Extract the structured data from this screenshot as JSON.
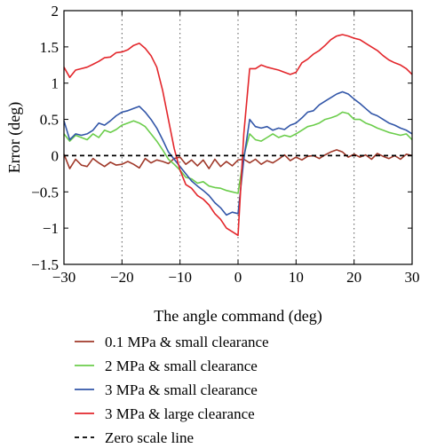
{
  "chart_data": {
    "type": "line",
    "title": "",
    "xlabel": "The angle command (deg)",
    "ylabel": "Error (deg)",
    "xlim": [
      -30,
      30
    ],
    "ylim": [
      -1.5,
      2
    ],
    "xticks": [
      -30,
      -20,
      -10,
      0,
      10,
      20,
      30
    ],
    "yticks": [
      -1.5,
      -1,
      -0.5,
      0,
      0.5,
      1,
      1.5,
      2
    ],
    "xtick_labels": [
      "−30",
      "−20",
      "−10",
      "0",
      "10",
      "20",
      "30"
    ],
    "ytick_labels": [
      "−1.5",
      "−1",
      "−0.5",
      "0",
      "0.5",
      "1",
      "1.5",
      "2"
    ],
    "grid": "dotted vertical lines at x ticks",
    "legend_position": "below plot",
    "series": [
      {
        "name": "0.1 MPa & small clearance",
        "color": "#a0392a",
        "style": "solid",
        "x": [
          -30,
          -29,
          -28,
          -27,
          -26,
          -25,
          -24,
          -23,
          -22,
          -21,
          -20,
          -19,
          -18,
          -17,
          -16,
          -15,
          -14,
          -13,
          -12,
          -11,
          -10,
          -9,
          -8,
          -7,
          -6,
          -5,
          -4,
          -3,
          -2,
          -1,
          0,
          1,
          2,
          3,
          4,
          5,
          6,
          7,
          8,
          9,
          10,
          11,
          12,
          13,
          14,
          15,
          16,
          17,
          18,
          19,
          20,
          21,
          22,
          23,
          24,
          25,
          26,
          27,
          28,
          29,
          30
        ],
        "y": [
          0.02,
          -0.18,
          -0.05,
          -0.13,
          -0.15,
          -0.04,
          -0.1,
          -0.15,
          -0.09,
          -0.13,
          -0.12,
          -0.08,
          -0.12,
          -0.17,
          -0.04,
          -0.1,
          -0.06,
          -0.08,
          -0.11,
          -0.04,
          -0.02,
          -0.12,
          -0.06,
          -0.14,
          -0.06,
          -0.18,
          -0.05,
          -0.15,
          -0.08,
          -0.14,
          -0.06,
          -0.05,
          -0.1,
          -0.05,
          -0.12,
          -0.07,
          -0.1,
          -0.05,
          0.01,
          -0.07,
          -0.02,
          -0.06,
          -0.01,
          0.0,
          -0.04,
          0.01,
          0.05,
          0.08,
          0.05,
          -0.02,
          0.02,
          -0.02,
          0.01,
          -0.05,
          0.03,
          -0.01,
          -0.04,
          0.0,
          -0.05,
          0.02,
          0.0
        ]
      },
      {
        "name": "2 MPa & small clearance",
        "color": "#6bcd4b",
        "style": "solid",
        "x": [
          -30,
          -29,
          -28,
          -27,
          -26,
          -25,
          -24,
          -23,
          -22,
          -21,
          -20,
          -19,
          -18,
          -17,
          -16,
          -15,
          -14,
          -13,
          -12,
          -11,
          -10,
          -9,
          -8,
          -7,
          -6,
          -5,
          -4,
          -3,
          -2,
          -1,
          0,
          1,
          2,
          3,
          4,
          5,
          6,
          7,
          8,
          9,
          10,
          11,
          12,
          13,
          14,
          15,
          16,
          17,
          18,
          19,
          20,
          21,
          22,
          23,
          24,
          25,
          26,
          27,
          28,
          29,
          30
        ],
        "y": [
          0.3,
          0.2,
          0.28,
          0.25,
          0.22,
          0.3,
          0.25,
          0.35,
          0.32,
          0.36,
          0.42,
          0.45,
          0.48,
          0.45,
          0.4,
          0.3,
          0.2,
          0.08,
          -0.05,
          -0.12,
          -0.2,
          -0.3,
          -0.32,
          -0.38,
          -0.36,
          -0.42,
          -0.44,
          -0.45,
          -0.48,
          -0.5,
          -0.52,
          0.0,
          0.3,
          0.22,
          0.2,
          0.25,
          0.3,
          0.25,
          0.28,
          0.26,
          0.3,
          0.35,
          0.4,
          0.42,
          0.45,
          0.5,
          0.52,
          0.55,
          0.6,
          0.58,
          0.5,
          0.5,
          0.45,
          0.42,
          0.38,
          0.35,
          0.32,
          0.3,
          0.28,
          0.3,
          0.22
        ]
      },
      {
        "name": "3 MPa & small clearance",
        "color": "#3256a8",
        "style": "solid",
        "x": [
          -30,
          -29,
          -28,
          -27,
          -26,
          -25,
          -24,
          -23,
          -22,
          -21,
          -20,
          -19,
          -18,
          -17,
          -16,
          -15,
          -14,
          -13,
          -12,
          -11,
          -10,
          -9,
          -8,
          -7,
          -6,
          -5,
          -4,
          -3,
          -2,
          -1,
          0,
          1,
          2,
          3,
          4,
          5,
          6,
          7,
          8,
          9,
          10,
          11,
          12,
          13,
          14,
          15,
          16,
          17,
          18,
          19,
          20,
          21,
          22,
          23,
          24,
          25,
          26,
          27,
          28,
          29,
          30
        ],
        "y": [
          0.48,
          0.22,
          0.3,
          0.28,
          0.3,
          0.35,
          0.45,
          0.42,
          0.48,
          0.55,
          0.6,
          0.62,
          0.65,
          0.68,
          0.6,
          0.5,
          0.38,
          0.22,
          0.05,
          -0.05,
          -0.15,
          -0.25,
          -0.35,
          -0.42,
          -0.48,
          -0.55,
          -0.65,
          -0.72,
          -0.82,
          -0.78,
          -0.8,
          -0.05,
          0.5,
          0.4,
          0.38,
          0.4,
          0.35,
          0.38,
          0.36,
          0.42,
          0.45,
          0.52,
          0.6,
          0.62,
          0.7,
          0.75,
          0.8,
          0.85,
          0.88,
          0.85,
          0.78,
          0.72,
          0.65,
          0.58,
          0.55,
          0.5,
          0.45,
          0.42,
          0.38,
          0.35,
          0.3
        ]
      },
      {
        "name": "3 MPa & large clearance",
        "color": "#e3262b",
        "style": "solid",
        "x": [
          -30,
          -29,
          -28,
          -27,
          -26,
          -25,
          -24,
          -23,
          -22,
          -21,
          -20,
          -19,
          -18,
          -17,
          -16,
          -15,
          -14,
          -13,
          -12,
          -11,
          -10,
          -9,
          -8,
          -7,
          -6,
          -5,
          -4,
          -3,
          -2,
          -1,
          0,
          1,
          2,
          3,
          4,
          5,
          6,
          7,
          8,
          9,
          10,
          11,
          12,
          13,
          14,
          15,
          16,
          17,
          18,
          19,
          20,
          21,
          22,
          23,
          24,
          25,
          26,
          27,
          28,
          29,
          30
        ],
        "y": [
          1.22,
          1.08,
          1.18,
          1.2,
          1.22,
          1.26,
          1.3,
          1.35,
          1.36,
          1.42,
          1.43,
          1.46,
          1.52,
          1.55,
          1.48,
          1.38,
          1.22,
          0.9,
          0.5,
          0.1,
          -0.2,
          -0.4,
          -0.45,
          -0.55,
          -0.6,
          -0.68,
          -0.8,
          -0.88,
          -1.0,
          -1.05,
          -1.1,
          0.3,
          1.2,
          1.2,
          1.25,
          1.22,
          1.2,
          1.18,
          1.15,
          1.12,
          1.15,
          1.28,
          1.33,
          1.4,
          1.45,
          1.52,
          1.6,
          1.65,
          1.67,
          1.65,
          1.62,
          1.6,
          1.55,
          1.5,
          1.45,
          1.38,
          1.32,
          1.28,
          1.25,
          1.2,
          1.12
        ]
      },
      {
        "name": "Zero scale line",
        "color": "#000000",
        "style": "dashed",
        "x": [
          -30,
          30
        ],
        "y": [
          0,
          0
        ]
      }
    ]
  }
}
